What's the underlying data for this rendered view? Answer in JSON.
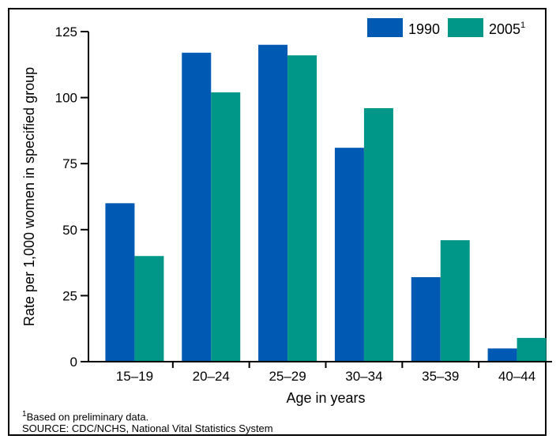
{
  "chart_data": {
    "type": "bar",
    "categories": [
      "15–19",
      "20–24",
      "25–29",
      "30–34",
      "35–39",
      "40–44"
    ],
    "series": [
      {
        "name": "1990",
        "values": [
          60,
          117,
          120,
          81,
          32,
          5
        ],
        "color": "#0059b3"
      },
      {
        "name": "2005",
        "name_superscript": "1",
        "values": [
          40,
          102,
          116,
          96,
          46,
          9
        ],
        "color": "#009688"
      }
    ],
    "xlabel": "Age in years",
    "ylabel": "Rate per 1,000 women in specified group",
    "ylim": [
      0,
      125
    ],
    "yticks": [
      0,
      25,
      50,
      75,
      100,
      125
    ],
    "grid": false,
    "legend_position": "top-right"
  },
  "footnote": {
    "marker": "1",
    "text": "Based on preliminary data."
  },
  "source": "SOURCE: CDC/NCHS, National Vital Statistics System"
}
